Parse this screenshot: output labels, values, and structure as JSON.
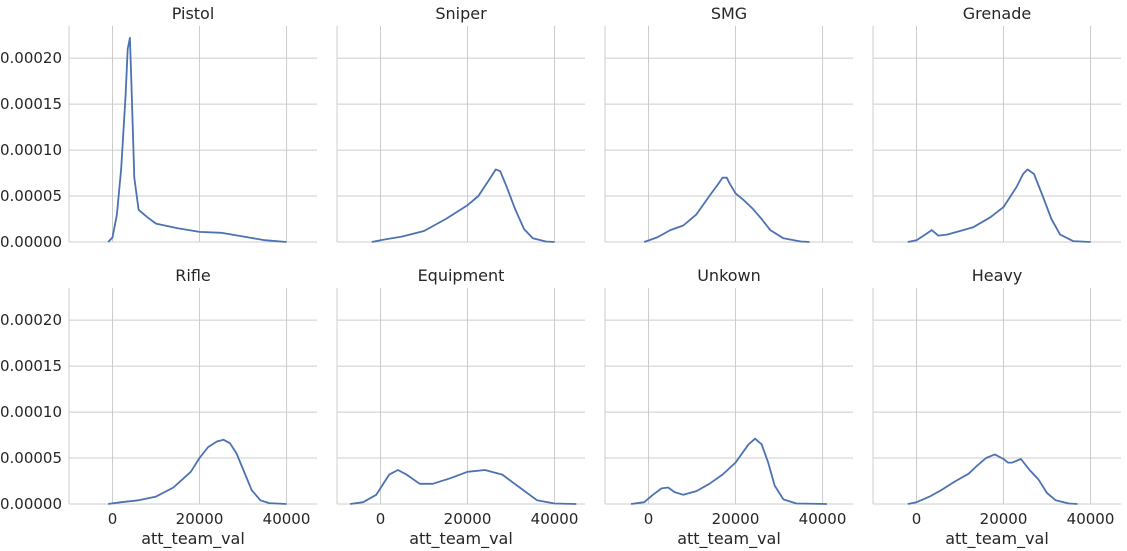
{
  "chart_data": {
    "type": "line",
    "layout": "facet-grid 2x4, shared axes",
    "xlabel": "att_team_val",
    "ylabel": "",
    "xlim": [
      -10000,
      47000
    ],
    "ylim": [
      0,
      0.000235
    ],
    "x_ticks": [
      0,
      20000,
      40000
    ],
    "y_ticks": [
      0,
      5e-05,
      0.0001,
      0.00015,
      0.0002
    ],
    "y_tick_labels": [
      "0.00000",
      "0.00005",
      "0.00010",
      "0.00015",
      "0.00020"
    ],
    "grid": true,
    "line_color": "#4c72b0",
    "panels": [
      {
        "title": "Pistol",
        "x": [
          -1000,
          0,
          1000,
          2000,
          2500,
          3000,
          3500,
          4000,
          4300,
          5000,
          6000,
          8000,
          10000,
          12000,
          15000,
          20000,
          25000,
          30000,
          35000,
          40000
        ],
        "y": [
          0,
          5e-06,
          3e-05,
          8e-05,
          0.00012,
          0.00016,
          0.00021,
          0.000222,
          0.00018,
          7e-05,
          3.5e-05,
          2.7e-05,
          2e-05,
          1.8e-05,
          1.5e-05,
          1.1e-05,
          1e-05,
          6e-06,
          2e-06,
          0
        ]
      },
      {
        "title": "Sniper",
        "x": [
          -2000,
          0,
          5000,
          10000,
          15000,
          20000,
          22500,
          25000,
          26500,
          27500,
          29000,
          31000,
          33000,
          35000,
          38000,
          40000
        ],
        "y": [
          0,
          2e-06,
          6e-06,
          1.2e-05,
          2.5e-05,
          4e-05,
          5e-05,
          6.8e-05,
          7.9e-05,
          7.7e-05,
          6e-05,
          3.5e-05,
          1.4e-05,
          4e-06,
          5e-07,
          0
        ]
      },
      {
        "title": "SMG",
        "x": [
          -1000,
          2000,
          5000,
          8000,
          11000,
          14000,
          16000,
          17000,
          18000,
          18500,
          20000,
          22000,
          24000,
          26000,
          28000,
          31000,
          35000,
          37000
        ],
        "y": [
          0,
          5e-06,
          1.3e-05,
          1.8e-05,
          3e-05,
          5e-05,
          6.3e-05,
          7e-05,
          7e-05,
          6.5e-05,
          5.3e-05,
          4.5e-05,
          3.6e-05,
          2.5e-05,
          1.3e-05,
          4e-06,
          5e-07,
          0
        ]
      },
      {
        "title": "Grenade",
        "x": [
          -2000,
          0,
          2000,
          3500,
          5000,
          7000,
          10000,
          13000,
          17000,
          20000,
          23000,
          24500,
          25500,
          27000,
          29000,
          31000,
          33000,
          36000,
          40000
        ],
        "y": [
          0,
          2e-06,
          8e-06,
          1.3e-05,
          7e-06,
          8e-06,
          1.2e-05,
          1.6e-05,
          2.7e-05,
          3.8e-05,
          6e-05,
          7.4e-05,
          7.9e-05,
          7.4e-05,
          5e-05,
          2.5e-05,
          8e-06,
          1e-06,
          0
        ]
      },
      {
        "title": "Rifle",
        "x": [
          -1000,
          2000,
          6000,
          10000,
          14000,
          18000,
          20000,
          22000,
          24000,
          25500,
          27000,
          28500,
          30000,
          32000,
          34000,
          36000,
          40000
        ],
        "y": [
          0,
          2e-06,
          4e-06,
          8e-06,
          1.8e-05,
          3.5e-05,
          5e-05,
          6.2e-05,
          6.8e-05,
          7e-05,
          6.6e-05,
          5.5e-05,
          3.8e-05,
          1.5e-05,
          4e-06,
          1e-06,
          0
        ]
      },
      {
        "title": "Equipment",
        "x": [
          -7000,
          -4000,
          -1000,
          2000,
          4000,
          6000,
          9000,
          12000,
          16000,
          20000,
          24000,
          28000,
          32000,
          36000,
          40000,
          45000
        ],
        "y": [
          0,
          2e-06,
          1e-05,
          3.2e-05,
          3.7e-05,
          3.2e-05,
          2.2e-05,
          2.2e-05,
          2.8e-05,
          3.5e-05,
          3.7e-05,
          3.2e-05,
          1.8e-05,
          4e-06,
          5e-07,
          0
        ]
      },
      {
        "title": "Unkown",
        "x": [
          -4000,
          -1000,
          1000,
          3000,
          4500,
          6000,
          8000,
          11000,
          14000,
          17000,
          20000,
          23000,
          24500,
          26000,
          27500,
          29000,
          31000,
          34000,
          41000
        ],
        "y": [
          0,
          2e-06,
          1e-05,
          1.7e-05,
          1.8e-05,
          1.3e-05,
          1e-05,
          1.4e-05,
          2.2e-05,
          3.2e-05,
          4.5e-05,
          6.5e-05,
          7.1e-05,
          6.5e-05,
          4.5e-05,
          2e-05,
          5e-06,
          5e-07,
          0
        ]
      },
      {
        "title": "Heavy",
        "x": [
          -2000,
          0,
          3000,
          6000,
          9000,
          12000,
          14000,
          16000,
          18000,
          20000,
          21000,
          22000,
          24000,
          26000,
          28000,
          30000,
          32000,
          35000,
          37000
        ],
        "y": [
          0,
          2e-06,
          8e-06,
          1.6e-05,
          2.5e-05,
          3.3e-05,
          4.2e-05,
          5e-05,
          5.4e-05,
          4.9e-05,
          4.5e-05,
          4.5e-05,
          4.9e-05,
          3.7e-05,
          2.7e-05,
          1.2e-05,
          4e-06,
          5e-07,
          0
        ]
      }
    ]
  }
}
